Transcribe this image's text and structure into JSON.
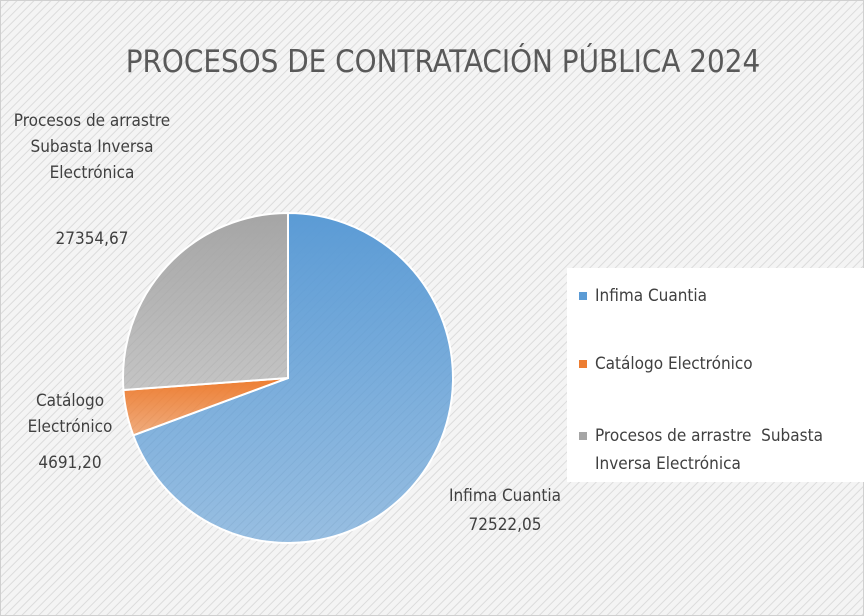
{
  "chart_data": {
    "type": "pie",
    "title": "PROCESOS DE CONTRATACIÓN PÚBLICA 2024",
    "categories": [
      "Infima Cuantia",
      "Catálogo Electrónico",
      "Procesos de arrastre  Subasta Inversa Electrónica"
    ],
    "values": [
      72522.05,
      4691.2,
      27354.67
    ],
    "value_labels": [
      "72522,05",
      "4691,20",
      "27354,67"
    ],
    "colors": [
      "#5b9bd5",
      "#ed7d31",
      "#a5a5a5"
    ],
    "legend": "right"
  }
}
